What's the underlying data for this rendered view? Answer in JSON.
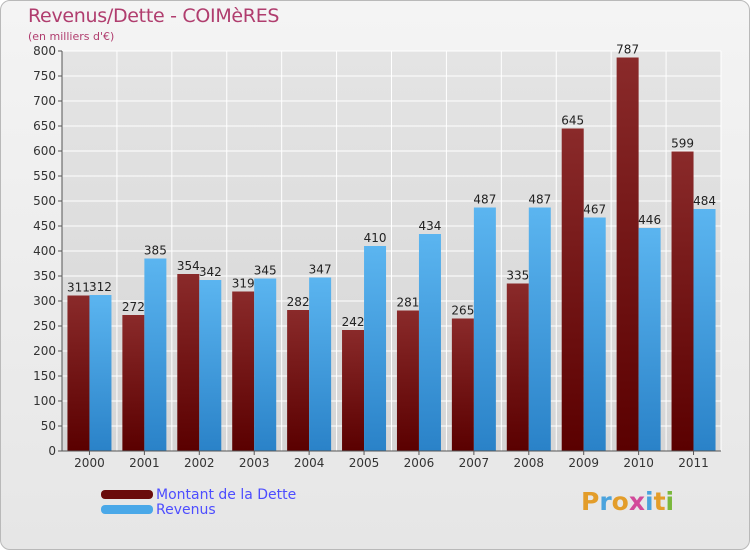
{
  "header": {
    "title": "Revenus/Dette - COIMèRES",
    "subtitle": "(en milliers d'€)"
  },
  "colors": {
    "debt": "#7a1515",
    "revenue": "#4aa8e8",
    "title": "#b03d6e",
    "legend_text": "#4d4dff",
    "grid": "#ffffff"
  },
  "chart_data": {
    "type": "bar",
    "categories": [
      "2000",
      "2001",
      "2002",
      "2003",
      "2004",
      "2005",
      "2006",
      "2007",
      "2008",
      "2009",
      "2010",
      "2011"
    ],
    "series": [
      {
        "name": "Montant de la Dette",
        "values": [
          311,
          272,
          354,
          319,
          282,
          242,
          281,
          265,
          335,
          645,
          787,
          599
        ]
      },
      {
        "name": "Revenus",
        "values": [
          312,
          385,
          342,
          345,
          347,
          410,
          434,
          487,
          487,
          467,
          446,
          484
        ]
      }
    ],
    "ylim": [
      0,
      800
    ],
    "yticks": [
      0,
      50,
      100,
      150,
      200,
      250,
      300,
      350,
      400,
      450,
      500,
      550,
      600,
      650,
      700,
      750,
      800
    ],
    "grid": true,
    "legend_position": "bottom-left"
  },
  "logo": {
    "letters": [
      "P",
      "r",
      "o",
      "x",
      "i",
      "t",
      "i"
    ],
    "colors": [
      "#e39d2a",
      "#4aa3dd",
      "#e39d2a",
      "#d24a9a",
      "#4aa3dd",
      "#e39d2a",
      "#7ab83c"
    ]
  }
}
